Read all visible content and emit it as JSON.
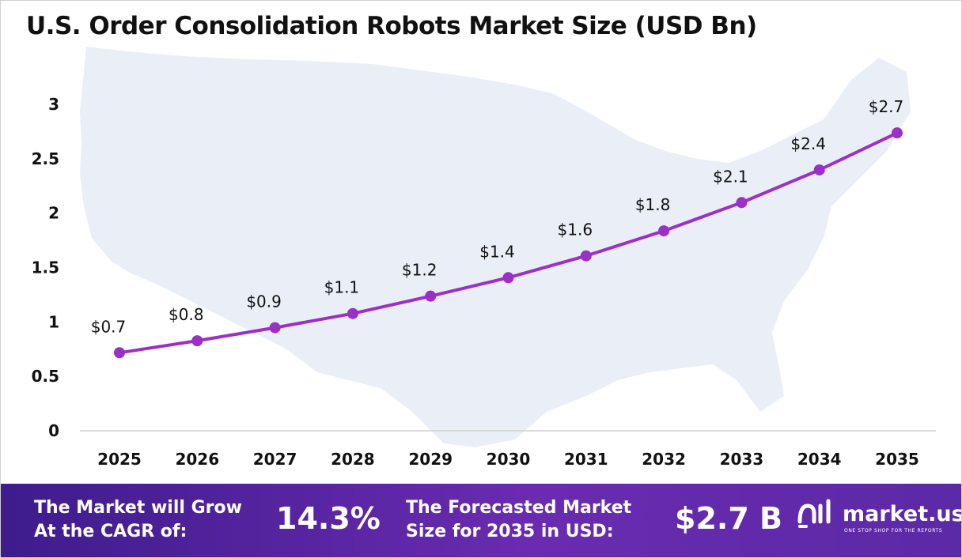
{
  "title": "U.S. Order Consolidation Robots Market Size (USD Bn)",
  "colors": {
    "line": "#9b30c7",
    "marker": "#9b30c7",
    "map": "#eaeef7",
    "footer_start": "#3e1c8c",
    "footer_end": "#6a2bb0"
  },
  "chart_data": {
    "type": "line",
    "categories": [
      "2025",
      "2026",
      "2027",
      "2028",
      "2029",
      "2030",
      "2031",
      "2032",
      "2033",
      "2034",
      "2035"
    ],
    "values": [
      0.71,
      0.82,
      0.94,
      1.07,
      1.23,
      1.4,
      1.6,
      1.83,
      2.09,
      2.39,
      2.73
    ],
    "labels": [
      "$0.7",
      "$0.8",
      "$0.9",
      "$1.1",
      "$1.2",
      "$1.4",
      "$1.6",
      "$1.8",
      "$2.1",
      "$2.4",
      "$2.7"
    ],
    "yticks": [
      "0",
      "0.5",
      "1",
      "1.5",
      "2",
      "2.5",
      "3"
    ],
    "ylim": [
      0,
      3
    ],
    "xlabel": "",
    "ylabel": "",
    "grid": false
  },
  "footer": {
    "cagr_label_line1": "The Market will Grow",
    "cagr_label_line2": "At the CAGR of:",
    "cagr_value": "14.3%",
    "forecast_label_line1": "The Forecasted Market",
    "forecast_label_line2": "Size for 2035 in USD:",
    "forecast_value": "$2.7 B"
  },
  "brand": {
    "name": "market.us",
    "tagline": "ONE STOP SHOP FOR THE REPORTS",
    "logo_icon": "market-us-logo-icon"
  }
}
